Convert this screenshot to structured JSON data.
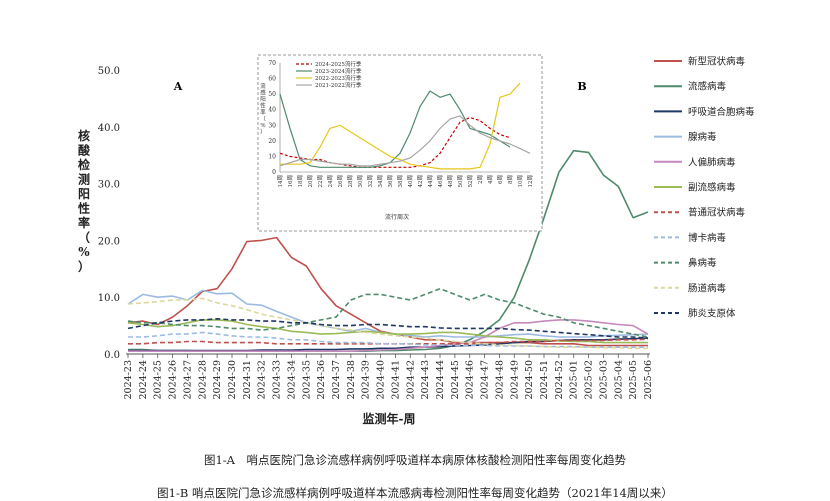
{
  "chart_data": [
    {
      "type": "line",
      "panel_labels": [
        "A",
        "B"
      ],
      "ylabel": "核酸检测阳性率（%）",
      "xlabel": "监测年-周",
      "ylim": [
        0,
        50
      ],
      "yticks": [
        "0.0",
        "10.0",
        "20.0",
        "30.0",
        "40.0",
        "50.0"
      ],
      "categories": [
        "2024-23",
        "2024-24",
        "2024-25",
        "2024-26",
        "2024-27",
        "2024-28",
        "2024-29",
        "2024-30",
        "2024-31",
        "2024-32",
        "2024-33",
        "2024-34",
        "2024-35",
        "2024-36",
        "2024-37",
        "2024-38",
        "2024-39",
        "2024-40",
        "2024-41",
        "2024-42",
        "2024-43",
        "2024-44",
        "2024-45",
        "2024-46",
        "2024-47",
        "2024-48",
        "2024-49",
        "2024-50",
        "2024-51",
        "2024-52",
        "2025-01",
        "2025-02",
        "2025-03",
        "2025-04",
        "2025-05",
        "2025-06"
      ],
      "legend_position": "right",
      "series": [
        {
          "name": "新型冠状病毒",
          "color": "#c0504d",
          "dash": "solid",
          "values": [
            5.5,
            5.8,
            5.2,
            6.5,
            8.5,
            11.0,
            11.5,
            15.0,
            19.8,
            20.0,
            20.5,
            17.0,
            15.5,
            11.5,
            8.5,
            7.0,
            5.5,
            4.0,
            3.5,
            3.0,
            2.5,
            2.5,
            2.0,
            2.0,
            2.0,
            2.0,
            2.0,
            2.0,
            1.8,
            1.8,
            1.8,
            1.5,
            1.5,
            1.5,
            1.5,
            1.5
          ]
        },
        {
          "name": "流感病毒",
          "color": "#4f8a6b",
          "dash": "solid",
          "values": [
            0.8,
            0.8,
            0.6,
            0.6,
            0.6,
            0.5,
            0.5,
            0.5,
            0.5,
            0.5,
            0.5,
            0.5,
            0.5,
            0.5,
            0.5,
            0.5,
            0.5,
            0.6,
            0.6,
            0.7,
            0.8,
            1.0,
            1.5,
            2.5,
            4.0,
            6.0,
            10.0,
            16.5,
            24.0,
            32.0,
            35.8,
            35.5,
            31.5,
            29.5,
            24.0,
            25.0
          ]
        },
        {
          "name": "呼吸道合胞病毒",
          "color": "#1f3864",
          "dash": "solid",
          "values": [
            0.6,
            0.6,
            0.6,
            0.6,
            0.6,
            0.6,
            0.6,
            0.6,
            0.6,
            0.7,
            0.7,
            0.7,
            0.8,
            0.8,
            0.8,
            0.9,
            0.9,
            1.0,
            1.0,
            1.2,
            1.2,
            1.3,
            1.4,
            1.5,
            1.6,
            1.8,
            2.0,
            2.2,
            2.2,
            2.4,
            2.5,
            2.5,
            2.5,
            2.6,
            2.7,
            2.8
          ]
        },
        {
          "name": "腺病毒",
          "color": "#9dbbe0",
          "dash": "solid",
          "values": [
            8.8,
            10.5,
            10.0,
            10.2,
            9.5,
            11.2,
            10.6,
            10.7,
            8.8,
            8.6,
            7.5,
            6.5,
            5.5,
            5.0,
            4.5,
            4.0,
            4.5,
            3.8,
            3.5,
            3.3,
            3.0,
            3.2,
            3.0,
            3.0,
            3.0,
            3.2,
            3.4,
            3.5,
            3.2,
            3.0,
            3.0,
            3.0,
            3.2,
            3.3,
            3.4,
            3.5
          ]
        },
        {
          "name": "人偏肺病毒",
          "color": "#c689bd",
          "dash": "solid",
          "values": [
            0.5,
            0.5,
            0.5,
            0.5,
            0.5,
            0.5,
            0.5,
            0.5,
            0.5,
            0.5,
            0.5,
            0.5,
            0.5,
            0.5,
            0.5,
            0.5,
            0.6,
            0.7,
            0.8,
            1.0,
            1.2,
            1.5,
            1.8,
            2.0,
            3.0,
            4.5,
            5.5,
            5.5,
            5.8,
            6.0,
            6.0,
            5.8,
            5.5,
            5.2,
            5.0,
            3.5
          ]
        },
        {
          "name": "副流感病毒",
          "color": "#9bbb59",
          "dash": "solid",
          "values": [
            5.5,
            5.2,
            4.8,
            5.0,
            5.5,
            6.0,
            6.0,
            5.8,
            5.2,
            4.8,
            4.5,
            4.0,
            3.8,
            3.5,
            3.6,
            3.8,
            4.0,
            3.8,
            3.5,
            3.5,
            3.6,
            3.8,
            3.8,
            3.5,
            3.2,
            3.0,
            2.8,
            2.5,
            2.5,
            2.3,
            2.2,
            2.2,
            2.0,
            2.0,
            2.0,
            2.0
          ]
        },
        {
          "name": "普通冠状病毒",
          "color": "#c0504d",
          "dash": "dashed",
          "values": [
            1.8,
            1.8,
            2.0,
            2.0,
            2.2,
            2.2,
            2.0,
            2.0,
            2.0,
            2.0,
            1.8,
            1.8,
            1.8,
            1.8,
            1.8,
            1.8,
            1.8,
            1.8,
            1.8,
            1.8,
            1.8,
            1.8,
            1.8,
            1.8,
            2.0,
            2.0,
            2.2,
            2.2,
            2.2,
            2.4,
            2.4,
            2.4,
            2.4,
            2.5,
            2.5,
            2.6
          ]
        },
        {
          "name": "博卡病毒",
          "color": "#9dbbe0",
          "dash": "dashed",
          "values": [
            3.0,
            3.0,
            3.2,
            3.5,
            3.5,
            3.8,
            3.5,
            3.2,
            3.0,
            3.0,
            2.8,
            2.5,
            2.5,
            2.2,
            2.0,
            2.0,
            2.0,
            1.8,
            1.8,
            1.8,
            1.6,
            1.6,
            1.5,
            1.5,
            1.5,
            1.4,
            1.4,
            1.4,
            1.3,
            1.3,
            1.3,
            1.2,
            1.2,
            1.2,
            1.2,
            1.2
          ]
        },
        {
          "name": "鼻病毒",
          "color": "#4f8a6b",
          "dash": "dashed",
          "values": [
            5.8,
            5.5,
            5.5,
            5.2,
            5.0,
            5.0,
            4.8,
            4.5,
            4.5,
            4.2,
            4.5,
            5.0,
            5.5,
            6.0,
            6.5,
            9.5,
            10.5,
            10.5,
            10.0,
            9.5,
            10.5,
            11.5,
            10.5,
            9.5,
            10.5,
            9.5,
            9.0,
            8.0,
            7.0,
            6.5,
            5.5,
            5.0,
            4.5,
            4.0,
            3.5,
            3.0
          ]
        },
        {
          "name": "肠道病毒",
          "color": "#d9d9a0",
          "dash": "dashed",
          "values": [
            8.8,
            9.0,
            9.2,
            9.5,
            9.5,
            9.8,
            9.0,
            8.5,
            7.8,
            7.0,
            6.5,
            6.0,
            5.5,
            5.0,
            4.5,
            4.2,
            3.8,
            3.5,
            3.2,
            3.0,
            2.8,
            2.5,
            2.2,
            2.0,
            1.8,
            1.6,
            1.5,
            1.4,
            1.3,
            1.2,
            1.2,
            1.2,
            1.1,
            1.1,
            1.0,
            1.0
          ]
        },
        {
          "name": "肺炎支原体",
          "color": "#1f3864",
          "dash": "dashed",
          "values": [
            4.5,
            5.0,
            5.5,
            5.8,
            6.0,
            6.0,
            6.2,
            6.0,
            6.0,
            5.8,
            5.8,
            5.5,
            5.5,
            5.2,
            5.0,
            5.0,
            5.2,
            5.2,
            5.0,
            4.8,
            4.8,
            4.6,
            4.5,
            4.5,
            4.5,
            4.5,
            4.3,
            4.2,
            4.0,
            3.8,
            3.6,
            3.4,
            3.2,
            3.0,
            3.0,
            2.8
          ]
        }
      ]
    },
    {
      "type": "line",
      "inset": true,
      "ylabel": "流感阳性率（%）",
      "xlabel": "流行周次",
      "ylim": [
        0,
        70
      ],
      "yticks": [
        "0",
        "10",
        "20",
        "30",
        "40",
        "50",
        "60",
        "70"
      ],
      "categories": [
        "14周",
        "16周",
        "18周",
        "20周",
        "22周",
        "24周",
        "26周",
        "28周",
        "30周",
        "32周",
        "34周",
        "36周",
        "38周",
        "40周",
        "42周",
        "44周",
        "46周",
        "48周",
        "50周",
        "52周",
        "2周",
        "4周",
        "6周",
        "8周",
        "10周",
        "12周"
      ],
      "legend_position": "top-left",
      "series": [
        {
          "name": "2024-2025流行季",
          "color": "#c00000",
          "dash": "dashed",
          "values": [
            12,
            10,
            9,
            8,
            8,
            6,
            5,
            4,
            3,
            3,
            3,
            3,
            3,
            3,
            4,
            6,
            12,
            22,
            32,
            35,
            33,
            28,
            24,
            22,
            null,
            null
          ]
        },
        {
          "name": "2023-2024流行季",
          "color": "#4f8a6b",
          "dash": "solid",
          "values": [
            50,
            28,
            8,
            4,
            3,
            3,
            3,
            3,
            3,
            3,
            4,
            6,
            12,
            25,
            42,
            52,
            48,
            50,
            40,
            28,
            26,
            24,
            20,
            16,
            null,
            null
          ]
        },
        {
          "name": "2022-2023流行季",
          "color": "#e6c619",
          "dash": "solid",
          "values": [
            5,
            5,
            5,
            6,
            16,
            28,
            30,
            26,
            22,
            18,
            14,
            10,
            8,
            5,
            4,
            3,
            2,
            2,
            2,
            2,
            3,
            18,
            48,
            50,
            57,
            null
          ]
        },
        {
          "name": "2021-2022流行季",
          "color": "#a6a6a6",
          "dash": "solid",
          "values": [
            4,
            6,
            8,
            8,
            7,
            6,
            5,
            5,
            4,
            4,
            5,
            6,
            7,
            9,
            14,
            20,
            28,
            34,
            36,
            30,
            25,
            22,
            20,
            18,
            15,
            12
          ]
        }
      ]
    }
  ],
  "captions": {
    "fig_a": "图1-A　哨点医院门急诊流感样病例呼吸道样本病原体核酸检测阳性率每周变化趋势",
    "fig_b": "图1-B 哨点医院门急诊流感样病例呼吸道样本流感病毒检测阳性率每周变化趋势（2021年14周以来）"
  }
}
